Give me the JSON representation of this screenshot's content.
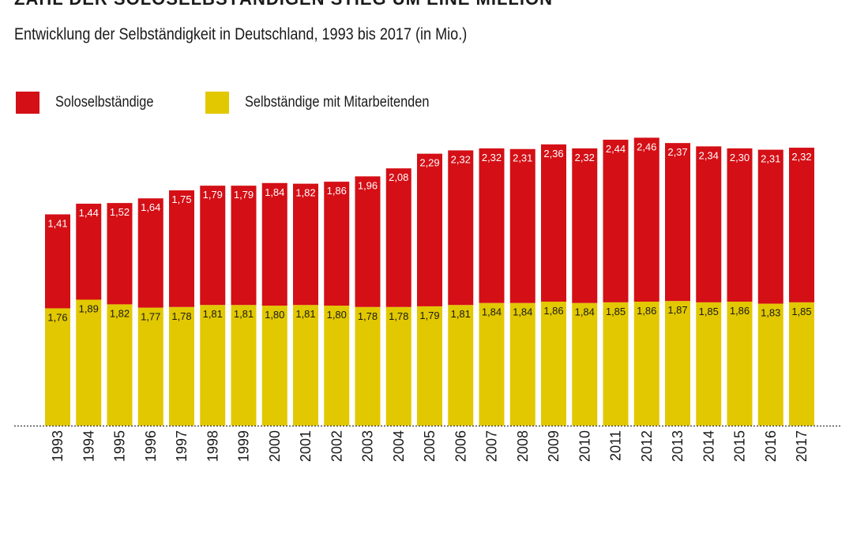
{
  "header": {
    "headline": "ZAHL DER SOLOSELBSTÄNDIGEN STIEG UM EINE MILLION",
    "subtitle": "Entwicklung der Selbständigkeit in Deutschland, 1993 bis 2017 (in Mio.)"
  },
  "colors": {
    "solo": "#d40f16",
    "employers": "#e2c800",
    "axis": "#333333"
  },
  "chart_data": {
    "type": "bar",
    "stacked": true,
    "title": "Entwicklung der Selbständigkeit in Deutschland, 1993 bis 2017 (in Mio.)",
    "xlabel": "",
    "ylabel": "",
    "ylim": [
      0,
      4.5
    ],
    "legend_position": "top-left",
    "grid": false,
    "categories": [
      "1993",
      "1994",
      "1995",
      "1996",
      "1997",
      "1998",
      "1999",
      "2000",
      "2001",
      "2002",
      "2003",
      "2004",
      "2005",
      "2006",
      "2007",
      "2008",
      "2009",
      "2010",
      "2011",
      "2012",
      "2013",
      "2014",
      "2015",
      "2016",
      "2017"
    ],
    "series": [
      {
        "name": "Selbständige mit Mitarbeitenden",
        "color": "#e2c800",
        "values": [
          1.76,
          1.89,
          1.82,
          1.77,
          1.78,
          1.81,
          1.81,
          1.8,
          1.81,
          1.8,
          1.78,
          1.78,
          1.79,
          1.81,
          1.84,
          1.84,
          1.86,
          1.84,
          1.85,
          1.86,
          1.87,
          1.85,
          1.86,
          1.83,
          1.85
        ],
        "labels": [
          "1,76",
          "1,89",
          "1,82",
          "1,77",
          "1,78",
          "1,81",
          "1,81",
          "1,80",
          "1,81",
          "1,80",
          "1,78",
          "1,78",
          "1,79",
          "1,81",
          "1,84",
          "1,84",
          "1,86",
          "1,84",
          "1,85",
          "1,86",
          "1,87",
          "1,85",
          "1,86",
          "1,83",
          "1,85"
        ]
      },
      {
        "name": "Soloselbständige",
        "color": "#d40f16",
        "values": [
          1.41,
          1.44,
          1.52,
          1.64,
          1.75,
          1.79,
          1.79,
          1.84,
          1.82,
          1.86,
          1.96,
          2.08,
          2.29,
          2.32,
          2.32,
          2.31,
          2.36,
          2.32,
          2.44,
          2.46,
          2.37,
          2.34,
          2.3,
          2.31,
          2.32
        ],
        "labels": [
          "1,41",
          "1,44",
          "1,52",
          "1,64",
          "1,75",
          "1,79",
          "1,79",
          "1,84",
          "1,82",
          "1,86",
          "1,96",
          "2,08",
          "2,29",
          "2,32",
          "2,32",
          "2,31",
          "2,36",
          "2,32",
          "2,44",
          "2,46",
          "2,37",
          "2,34",
          "2,30",
          "2,31",
          "2,32"
        ]
      }
    ]
  }
}
